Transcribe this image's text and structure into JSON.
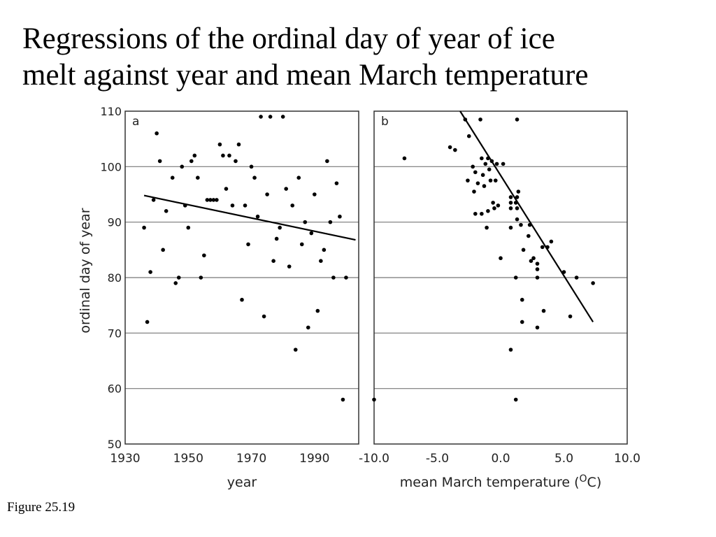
{
  "slide": {
    "title_line1": "Regressions of the ordinal day of year of ice",
    "title_line2": "melt against year and mean March temperature",
    "caption": "Figure 25.19"
  },
  "chart_data": [
    {
      "type": "scatter",
      "panel_label": "a",
      "xlabel": "year",
      "ylabel": "ordinal day of year",
      "xlim": [
        1930,
        2004
      ],
      "ylim": [
        50,
        110
      ],
      "xticks": [
        1930,
        1950,
        1970,
        1990
      ],
      "xtick_labels": [
        "1930",
        "1950",
        "1970",
        "1990"
      ],
      "yticks": [
        50,
        60,
        70,
        80,
        90,
        100,
        110
      ],
      "ytick_labels": [
        "50",
        "60",
        "70",
        "80",
        "90",
        "100",
        "110"
      ],
      "grid": "horizontal",
      "points": [
        {
          "x": 1936,
          "y": 89
        },
        {
          "x": 1937,
          "y": 72
        },
        {
          "x": 1938,
          "y": 81
        },
        {
          "x": 1939,
          "y": 94
        },
        {
          "x": 1940,
          "y": 106
        },
        {
          "x": 1941,
          "y": 101
        },
        {
          "x": 1942,
          "y": 85
        },
        {
          "x": 1943,
          "y": 92
        },
        {
          "x": 1945,
          "y": 98
        },
        {
          "x": 1946,
          "y": 79
        },
        {
          "x": 1947,
          "y": 80
        },
        {
          "x": 1948,
          "y": 100
        },
        {
          "x": 1949,
          "y": 93
        },
        {
          "x": 1950,
          "y": 89
        },
        {
          "x": 1951,
          "y": 101
        },
        {
          "x": 1952,
          "y": 102
        },
        {
          "x": 1953,
          "y": 98
        },
        {
          "x": 1954,
          "y": 80
        },
        {
          "x": 1955,
          "y": 84
        },
        {
          "x": 1956,
          "y": 94
        },
        {
          "x": 1957,
          "y": 94
        },
        {
          "x": 1958,
          "y": 94
        },
        {
          "x": 1959,
          "y": 94
        },
        {
          "x": 1960,
          "y": 104
        },
        {
          "x": 1961,
          "y": 102
        },
        {
          "x": 1962,
          "y": 96
        },
        {
          "x": 1963,
          "y": 102
        },
        {
          "x": 1964,
          "y": 93
        },
        {
          "x": 1965,
          "y": 101
        },
        {
          "x": 1966,
          "y": 104
        },
        {
          "x": 1967,
          "y": 76
        },
        {
          "x": 1968,
          "y": 93
        },
        {
          "x": 1969,
          "y": 86
        },
        {
          "x": 1970,
          "y": 100
        },
        {
          "x": 1971,
          "y": 98
        },
        {
          "x": 1972,
          "y": 91
        },
        {
          "x": 1973,
          "y": 109
        },
        {
          "x": 1974,
          "y": 73
        },
        {
          "x": 1975,
          "y": 95
        },
        {
          "x": 1976,
          "y": 109
        },
        {
          "x": 1977,
          "y": 83
        },
        {
          "x": 1978,
          "y": 87
        },
        {
          "x": 1979,
          "y": 89
        },
        {
          "x": 1980,
          "y": 109
        },
        {
          "x": 1981,
          "y": 96
        },
        {
          "x": 1982,
          "y": 82
        },
        {
          "x": 1983,
          "y": 93
        },
        {
          "x": 1984,
          "y": 67
        },
        {
          "x": 1985,
          "y": 98
        },
        {
          "x": 1986,
          "y": 86
        },
        {
          "x": 1987,
          "y": 90
        },
        {
          "x": 1988,
          "y": 71
        },
        {
          "x": 1989,
          "y": 88
        },
        {
          "x": 1990,
          "y": 95
        },
        {
          "x": 1991,
          "y": 74
        },
        {
          "x": 1992,
          "y": 83
        },
        {
          "x": 1993,
          "y": 85
        },
        {
          "x": 1994,
          "y": 101
        },
        {
          "x": 1995,
          "y": 90
        },
        {
          "x": 1996,
          "y": 80
        },
        {
          "x": 1997,
          "y": 97
        },
        {
          "x": 1998,
          "y": 91
        },
        {
          "x": 1999,
          "y": 58
        },
        {
          "x": 2000,
          "y": 80
        }
      ],
      "regression_line": [
        {
          "x": 1936,
          "y": 94.8
        },
        {
          "x": 2003,
          "y": 86.8
        }
      ]
    },
    {
      "type": "scatter",
      "panel_label": "b",
      "xlabel": "mean March temperature (",
      "xlabel_sup": "O",
      "xlabel_tail": "C)",
      "xlim": [
        -10,
        10
      ],
      "ylim": [
        50,
        110
      ],
      "xticks": [
        -10,
        -5,
        0,
        5,
        10
      ],
      "xtick_labels": [
        "-10.0",
        "-5.0",
        "0.0",
        "5.0",
        "10.0"
      ],
      "yticks": [
        50,
        60,
        70,
        80,
        90,
        100,
        110
      ],
      "grid": "horizontal",
      "points": [
        {
          "x": -7.6,
          "y": 101.5
        },
        {
          "x": -4.0,
          "y": 103.5
        },
        {
          "x": -3.6,
          "y": 103.0
        },
        {
          "x": -2.8,
          "y": 108.5
        },
        {
          "x": -2.5,
          "y": 105.5
        },
        {
          "x": -2.6,
          "y": 97.5
        },
        {
          "x": -2.2,
          "y": 100.0
        },
        {
          "x": -2.0,
          "y": 99.0
        },
        {
          "x": -2.1,
          "y": 95.5
        },
        {
          "x": -1.8,
          "y": 97.0
        },
        {
          "x": -1.6,
          "y": 108.5
        },
        {
          "x": -1.5,
          "y": 101.5
        },
        {
          "x": -1.4,
          "y": 98.5
        },
        {
          "x": -1.3,
          "y": 96.5
        },
        {
          "x": -1.2,
          "y": 100.5
        },
        {
          "x": -1.0,
          "y": 101.5
        },
        {
          "x": -0.9,
          "y": 99.5
        },
        {
          "x": -0.8,
          "y": 97.5
        },
        {
          "x": -0.7,
          "y": 101.0
        },
        {
          "x": -0.6,
          "y": 93.5
        },
        {
          "x": -0.5,
          "y": 92.5
        },
        {
          "x": -0.4,
          "y": 97.5
        },
        {
          "x": -0.3,
          "y": 100.5
        },
        {
          "x": -0.2,
          "y": 93.0
        },
        {
          "x": 0.2,
          "y": 100.5
        },
        {
          "x": -1.0,
          "y": 92.0
        },
        {
          "x": -1.5,
          "y": 91.5
        },
        {
          "x": -1.1,
          "y": 89.0
        },
        {
          "x": -2.0,
          "y": 91.5
        },
        {
          "x": 0.0,
          "y": 83.5
        },
        {
          "x": 0.8,
          "y": 94.5
        },
        {
          "x": 0.8,
          "y": 93.5
        },
        {
          "x": 0.8,
          "y": 92.5
        },
        {
          "x": 0.8,
          "y": 89.0
        },
        {
          "x": 1.2,
          "y": 93.5
        },
        {
          "x": 1.3,
          "y": 94.5
        },
        {
          "x": 1.3,
          "y": 92.5
        },
        {
          "x": 1.4,
          "y": 95.5
        },
        {
          "x": 1.3,
          "y": 90.5
        },
        {
          "x": 1.3,
          "y": 108.5
        },
        {
          "x": 1.6,
          "y": 89.5
        },
        {
          "x": 1.8,
          "y": 85.0
        },
        {
          "x": 1.2,
          "y": 80.0
        },
        {
          "x": 1.7,
          "y": 76.0
        },
        {
          "x": 1.7,
          "y": 72.0
        },
        {
          "x": 2.2,
          "y": 87.5
        },
        {
          "x": 2.3,
          "y": 89.5
        },
        {
          "x": 2.4,
          "y": 83.0
        },
        {
          "x": 2.6,
          "y": 83.5
        },
        {
          "x": 2.9,
          "y": 82.5
        },
        {
          "x": 2.9,
          "y": 81.5
        },
        {
          "x": 2.9,
          "y": 80.0
        },
        {
          "x": 2.9,
          "y": 71.0
        },
        {
          "x": 3.3,
          "y": 85.5
        },
        {
          "x": 3.4,
          "y": 74.0
        },
        {
          "x": 3.7,
          "y": 85.5
        },
        {
          "x": 4.0,
          "y": 86.5
        },
        {
          "x": 5.0,
          "y": 81.0
        },
        {
          "x": 5.5,
          "y": 73.0
        },
        {
          "x": 6.0,
          "y": 80.0
        },
        {
          "x": 7.3,
          "y": 79.0
        },
        {
          "x": 0.8,
          "y": 67.0
        },
        {
          "x": 1.2,
          "y": 58.0
        },
        {
          "x": -10.0,
          "y": 58.0
        }
      ],
      "regression_line": [
        {
          "x": -3.2,
          "y": 110
        },
        {
          "x": 7.3,
          "y": 72.0
        }
      ]
    }
  ]
}
